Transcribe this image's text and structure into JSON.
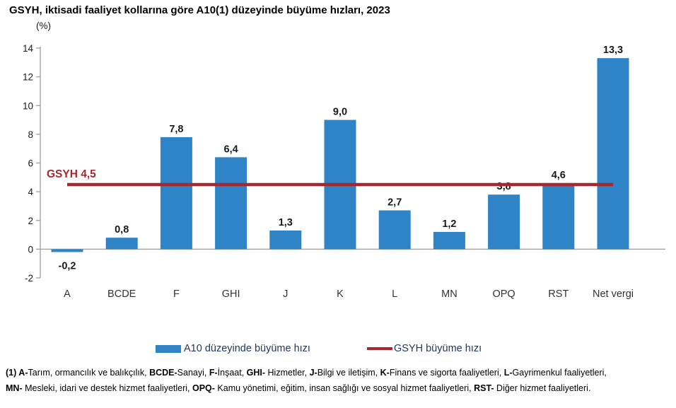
{
  "title": "GSYH, iktisadi faaliyet kollarına göre A10(1) düzeyinde büyüme hızları, 2023",
  "colors": {
    "bar": "#2E84C6",
    "reference_line": "#A8272E",
    "axis": "#9E9E9E",
    "value_label": "#1a1a1a",
    "category_label": "#333333",
    "legend_text": "#1F3864"
  },
  "chart_data": {
    "type": "bar",
    "title": "GSYH, iktisadi faaliyet kollarına göre A10(1) düzeyinde büyüme hızları, 2023",
    "xlabel": "",
    "ylabel": "(%)",
    "categories": [
      "A",
      "BCDE",
      "F",
      "GHI",
      "J",
      "K",
      "L",
      "MN",
      "OPQ",
      "RST",
      "Net vergi"
    ],
    "values": [
      -0.2,
      0.8,
      7.8,
      6.4,
      1.3,
      9.0,
      2.7,
      1.2,
      3.8,
      4.6,
      13.3
    ],
    "value_labels": [
      "-0,2",
      "0,8",
      "7,8",
      "6,4",
      "1,3",
      "9,0",
      "2,7",
      "1,2",
      "3,8",
      "4,6",
      "13,3"
    ],
    "ylim": [
      -2,
      14
    ],
    "ytick_labels": [
      "14",
      "12",
      "10",
      "8",
      "6",
      "4",
      "2",
      "0",
      "-2"
    ],
    "grid": false,
    "legend_position": "bottom",
    "reference_line": {
      "value": 4.5,
      "label": "GSYH 4,5",
      "series_name": "GSYH büyüme hızı"
    }
  },
  "legend": [
    {
      "swatch": "bar",
      "label": "A10 düzeyinde büyüme hızı"
    },
    {
      "swatch": "line",
      "label": "GSYH büyüme hızı"
    }
  ],
  "footnote": {
    "line1": [
      {
        "t": "(1) ",
        "b": true
      },
      {
        "t": "A-",
        "b": true
      },
      {
        "t": "Tarım, ormancılık ve balıkçılık, ",
        "b": false
      },
      {
        "t": "BCDE-",
        "b": true
      },
      {
        "t": "Sanayi, ",
        "b": false
      },
      {
        "t": "F-",
        "b": true
      },
      {
        "t": "İnşaat, ",
        "b": false
      },
      {
        "t": "GHI-",
        "b": true
      },
      {
        "t": " Hizmetler, ",
        "b": false
      },
      {
        "t": "J-",
        "b": true
      },
      {
        "t": "Bilgi ve iletişim, ",
        "b": false
      },
      {
        "t": "K-",
        "b": true
      },
      {
        "t": "Finans ve sigorta faaliyetleri, ",
        "b": false
      },
      {
        "t": "L-",
        "b": true
      },
      {
        "t": "Gayrimenkul faaliyetleri,",
        "b": false
      }
    ],
    "line2": [
      {
        "t": "MN-",
        "b": true
      },
      {
        "t": " Mesleki, idari ve destek hizmet faaliyetleri, ",
        "b": false
      },
      {
        "t": "OPQ-",
        "b": true
      },
      {
        "t": " Kamu yönetimi, eğitim, insan sağlığı ve sosyal hizmet faaliyetleri, ",
        "b": false
      },
      {
        "t": "RST-",
        "b": true
      },
      {
        "t": " Diğer hizmet faaliyetleri.",
        "b": false
      }
    ]
  }
}
